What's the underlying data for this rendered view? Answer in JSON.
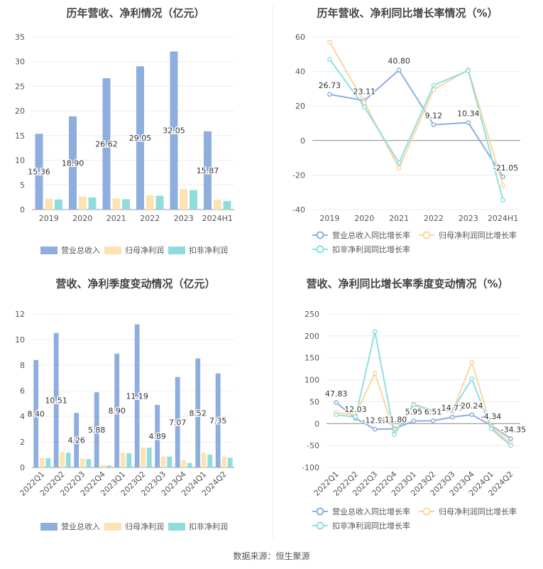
{
  "source": "数据来源：恒生聚源",
  "chart_data": [
    {
      "type": "bar",
      "title": "历年营收、净利情况（亿元）",
      "categories": [
        "2019",
        "2020",
        "2021",
        "2022",
        "2023",
        "2024H1"
      ],
      "yticks": [
        "0",
        "5",
        "10",
        "15",
        "20",
        "25",
        "30",
        "35"
      ],
      "ylim": [
        0,
        35
      ],
      "label_series": 0,
      "series": [
        {
          "name": "营业总收入",
          "color": "#8eaedd",
          "values": [
            15.36,
            18.9,
            26.62,
            29.05,
            32.05,
            15.87
          ],
          "labels": [
            "15.36",
            "18.90",
            "26.62",
            "29.05",
            "32.05",
            "15.87"
          ]
        },
        {
          "name": "归母净利润",
          "color": "#fde3b1",
          "values": [
            2.2,
            2.65,
            2.25,
            2.9,
            4.15,
            2.0
          ]
        },
        {
          "name": "扣非净利润",
          "color": "#90dcdc",
          "values": [
            2.05,
            2.45,
            2.1,
            2.8,
            3.95,
            1.75
          ]
        }
      ]
    },
    {
      "type": "line",
      "title": "历年营收、净利同比增长率情况（%）",
      "categories": [
        "2019",
        "2020",
        "2021",
        "2022",
        "2023",
        "2024H1"
      ],
      "yticks": [
        "-40",
        "-20",
        "0",
        "20",
        "40",
        "60"
      ],
      "ylim": [
        -40,
        60
      ],
      "label_series": 0,
      "series": [
        {
          "name": "营业总收入同比增长率",
          "color": "#8eaedd",
          "values": [
            26.73,
            23.11,
            40.8,
            9.12,
            10.34,
            -21.05
          ],
          "labels": [
            "26.73",
            "23.11",
            "40.80",
            "9.12",
            "10.34",
            "-21.05"
          ]
        },
        {
          "name": "归母净利润同比增长率",
          "color": "#fcd69a",
          "values": [
            57.0,
            22.0,
            -16.0,
            29.5,
            41.0,
            -26.0
          ]
        },
        {
          "name": "扣非净利润同比增长率",
          "color": "#8ddfe2",
          "values": [
            47.0,
            19.5,
            -13.0,
            32.0,
            40.5,
            -34.5
          ]
        }
      ]
    },
    {
      "type": "bar",
      "title": "营收、净利季度变动情况（亿元）",
      "categories": [
        "2022Q1",
        "2022Q2",
        "2022Q3",
        "2022Q4",
        "2023Q1",
        "2023Q2",
        "2023Q3",
        "2023Q4",
        "2024Q1",
        "2024Q2"
      ],
      "yticks": [
        "0",
        "2",
        "4",
        "6",
        "8",
        "10",
        "12"
      ],
      "ylim": [
        0,
        12
      ],
      "label_series": 0,
      "series": [
        {
          "name": "营业总收入",
          "color": "#8eaedd",
          "values": [
            8.4,
            10.51,
            4.26,
            5.88,
            8.9,
            11.19,
            4.89,
            7.07,
            8.52,
            7.35
          ],
          "labels": [
            "8.40",
            "10.51",
            "4.26",
            "5.88",
            "8.90",
            "11.19",
            "4.89",
            "7.07",
            "8.52",
            "7.35"
          ]
        },
        {
          "name": "归母净利润",
          "color": "#fde3b1",
          "values": [
            0.75,
            1.2,
            0.7,
            0.2,
            1.15,
            1.55,
            0.85,
            0.55,
            1.15,
            0.85
          ]
        },
        {
          "name": "扣非净利润",
          "color": "#90dcdc",
          "values": [
            0.72,
            1.15,
            0.65,
            0.15,
            1.1,
            1.55,
            0.85,
            0.35,
            1.0,
            0.75
          ]
        }
      ]
    },
    {
      "type": "line",
      "title": "营收、净利同比增长率季度变动情况（%）",
      "categories": [
        "2022Q1",
        "2022Q2",
        "2022Q3",
        "2022Q4",
        "2023Q1",
        "2023Q2",
        "2023Q3",
        "2023Q4",
        "2024Q1",
        "2024Q2"
      ],
      "yticks": [
        "-100",
        "-50",
        "0",
        "50",
        "100",
        "150",
        "200",
        "250"
      ],
      "ylim": [
        -100,
        250
      ],
      "label_series": 0,
      "series": [
        {
          "name": "营业总收入同比增长率",
          "color": "#8eaedd",
          "values": [
            47.83,
            12.03,
            -12.92,
            -11.8,
            5.95,
            6.51,
            14.77,
            20.24,
            -4.34,
            -34.35
          ],
          "labels": [
            "47.83",
            "12.03",
            "-12.92",
            "-11.80",
            "5.95",
            "6.51",
            "14.77",
            "20.24",
            "-4.34",
            "-34.35"
          ]
        },
        {
          "name": "归母净利润同比增长率",
          "color": "#fcd69a",
          "values": [
            25.0,
            20.0,
            115.0,
            -20.0,
            45.0,
            30.0,
            28.0,
            140.0,
            -8.0,
            -45.0
          ]
        },
        {
          "name": "扣非净利润同比增长率",
          "color": "#8ddfe2",
          "values": [
            20.0,
            15.0,
            210.0,
            -25.0,
            43.0,
            28.0,
            30.0,
            102.0,
            -12.0,
            -50.0
          ]
        }
      ]
    }
  ]
}
